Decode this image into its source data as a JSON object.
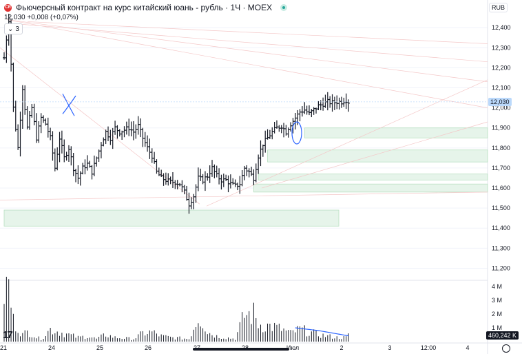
{
  "header": {
    "title": "Фьючерсный контракт на курс китайский юань - рубль · 1Ч · MOEX",
    "logo_text": "CR",
    "last": "12,030",
    "change": "+0,008 (+0,07%)",
    "toggle_count": "3",
    "currency": "RUB"
  },
  "price_axis": {
    "min": 11150,
    "max": 12490,
    "ticks": [
      "12,400",
      "12,300",
      "12,200",
      "12,100",
      "12,000",
      "11,900",
      "11,800",
      "11,700",
      "11,600",
      "11,500",
      "11,400",
      "11,300",
      "11,200"
    ],
    "tick_values": [
      12400,
      12300,
      12200,
      12100,
      12000,
      11900,
      11800,
      11700,
      11600,
      11500,
      11400,
      11300,
      11200
    ],
    "last_label": "12,030",
    "last_value": 12030
  },
  "volume_axis": {
    "max": 4300000,
    "ticks": [
      "4 M",
      "3 M",
      "2 M",
      "1 M"
    ],
    "tick_values": [
      4000000,
      3000000,
      2000000,
      1000000
    ],
    "last_label": "460,242 K"
  },
  "time_axis": {
    "labels": [
      "21",
      "24",
      "25",
      "26",
      "27",
      "28",
      "Июл",
      "2",
      "3",
      "12:00",
      "4"
    ]
  },
  "colors": {
    "bar": "#131722",
    "zone_fill": "#e6f4ea",
    "zone_stroke": "#b7dfc0",
    "drawing": "#2962ff",
    "volume": "#131722",
    "volume_avg": "#2962ff",
    "grid": "#f0f3fa"
  },
  "chart_data": {
    "type": "ohlc",
    "title": "Фьючерсный контракт на курс китайский юань - рубль · 1Ч · MOEX",
    "bar_count": 150,
    "price_anchors": [
      [
        0,
        12250
      ],
      [
        2,
        12440
      ],
      [
        4,
        12000
      ],
      [
        6,
        11800
      ],
      [
        8,
        12100
      ],
      [
        10,
        11900
      ],
      [
        12,
        12000
      ],
      [
        14,
        11850
      ],
      [
        16,
        11950
      ],
      [
        18,
        11920
      ],
      [
        20,
        11850
      ],
      [
        22,
        11700
      ],
      [
        24,
        11850
      ],
      [
        26,
        11750
      ],
      [
        28,
        11800
      ],
      [
        30,
        11700
      ],
      [
        32,
        11650
      ],
      [
        34,
        11700
      ],
      [
        36,
        11720
      ],
      [
        38,
        11680
      ],
      [
        40,
        11750
      ],
      [
        42,
        11820
      ],
      [
        44,
        11880
      ],
      [
        46,
        11850
      ],
      [
        48,
        11900
      ],
      [
        50,
        11880
      ],
      [
        52,
        11890
      ],
      [
        54,
        11900
      ],
      [
        56,
        11880
      ],
      [
        58,
        11910
      ],
      [
        60,
        11850
      ],
      [
        62,
        11800
      ],
      [
        64,
        11760
      ],
      [
        66,
        11680
      ],
      [
        68,
        11650
      ],
      [
        70,
        11640
      ],
      [
        72,
        11630
      ],
      [
        74,
        11630
      ],
      [
        76,
        11620
      ],
      [
        78,
        11580
      ],
      [
        80,
        11520
      ],
      [
        82,
        11560
      ],
      [
        84,
        11650
      ],
      [
        86,
        11640
      ],
      [
        88,
        11660
      ],
      [
        90,
        11700
      ],
      [
        92,
        11660
      ],
      [
        94,
        11640
      ],
      [
        96,
        11640
      ],
      [
        98,
        11620
      ],
      [
        100,
        11610
      ],
      [
        102,
        11620
      ],
      [
        104,
        11700
      ],
      [
        106,
        11680
      ],
      [
        108,
        11650
      ],
      [
        110,
        11760
      ],
      [
        112,
        11820
      ],
      [
        114,
        11850
      ],
      [
        116,
        11880
      ],
      [
        118,
        11900
      ],
      [
        120,
        11910
      ],
      [
        122,
        11880
      ],
      [
        124,
        11920
      ],
      [
        126,
        11950
      ],
      [
        128,
        11980
      ],
      [
        130,
        11990
      ],
      [
        132,
        11970
      ],
      [
        134,
        11990
      ],
      [
        136,
        12010
      ],
      [
        138,
        12020
      ],
      [
        140,
        12030
      ],
      [
        142,
        12025
      ],
      [
        144,
        12030
      ],
      [
        146,
        12030
      ],
      [
        148,
        12040
      ],
      [
        149,
        12030
      ]
    ],
    "volume_anchors": [
      [
        0,
        3700000
      ],
      [
        2,
        4000000
      ],
      [
        4,
        1500000
      ],
      [
        6,
        1000000
      ],
      [
        8,
        500000
      ],
      [
        10,
        700000
      ],
      [
        12,
        600000
      ],
      [
        14,
        300000
      ],
      [
        16,
        200000
      ],
      [
        20,
        900000
      ],
      [
        24,
        700000
      ],
      [
        28,
        500000
      ],
      [
        32,
        300000
      ],
      [
        36,
        400000
      ],
      [
        40,
        200000
      ],
      [
        44,
        500000
      ],
      [
        48,
        300000
      ],
      [
        52,
        250000
      ],
      [
        56,
        200000
      ],
      [
        60,
        600000
      ],
      [
        64,
        700000
      ],
      [
        68,
        400000
      ],
      [
        72,
        300000
      ],
      [
        76,
        250000
      ],
      [
        80,
        200000
      ],
      [
        84,
        1800000
      ],
      [
        86,
        1500000
      ],
      [
        88,
        700000
      ],
      [
        92,
        400000
      ],
      [
        96,
        300000
      ],
      [
        100,
        200000
      ],
      [
        104,
        1900000
      ],
      [
        108,
        2000000
      ],
      [
        110,
        1300000
      ],
      [
        112,
        1200000
      ],
      [
        116,
        1100000
      ],
      [
        120,
        900000
      ],
      [
        124,
        600000
      ],
      [
        128,
        900000
      ],
      [
        132,
        700000
      ],
      [
        136,
        500000
      ],
      [
        140,
        400000
      ],
      [
        144,
        300000
      ],
      [
        148,
        300000
      ],
      [
        149,
        460242
      ]
    ],
    "demand_zones": [
      {
        "from_bar": 0,
        "to_bar": 149,
        "low": 11410,
        "high": 11490,
        "extend": "to-bar-145"
      },
      {
        "from_bar": 130,
        "to_bar": 210,
        "low": 11850,
        "high": 11900
      },
      {
        "from_bar": 114,
        "to_bar": 210,
        "low": 11730,
        "high": 11790
      },
      {
        "from_bar": 110,
        "to_bar": 210,
        "low": 11640,
        "high": 11670
      },
      {
        "from_bar": 108,
        "to_bar": 210,
        "low": 11580,
        "high": 11620
      }
    ]
  }
}
